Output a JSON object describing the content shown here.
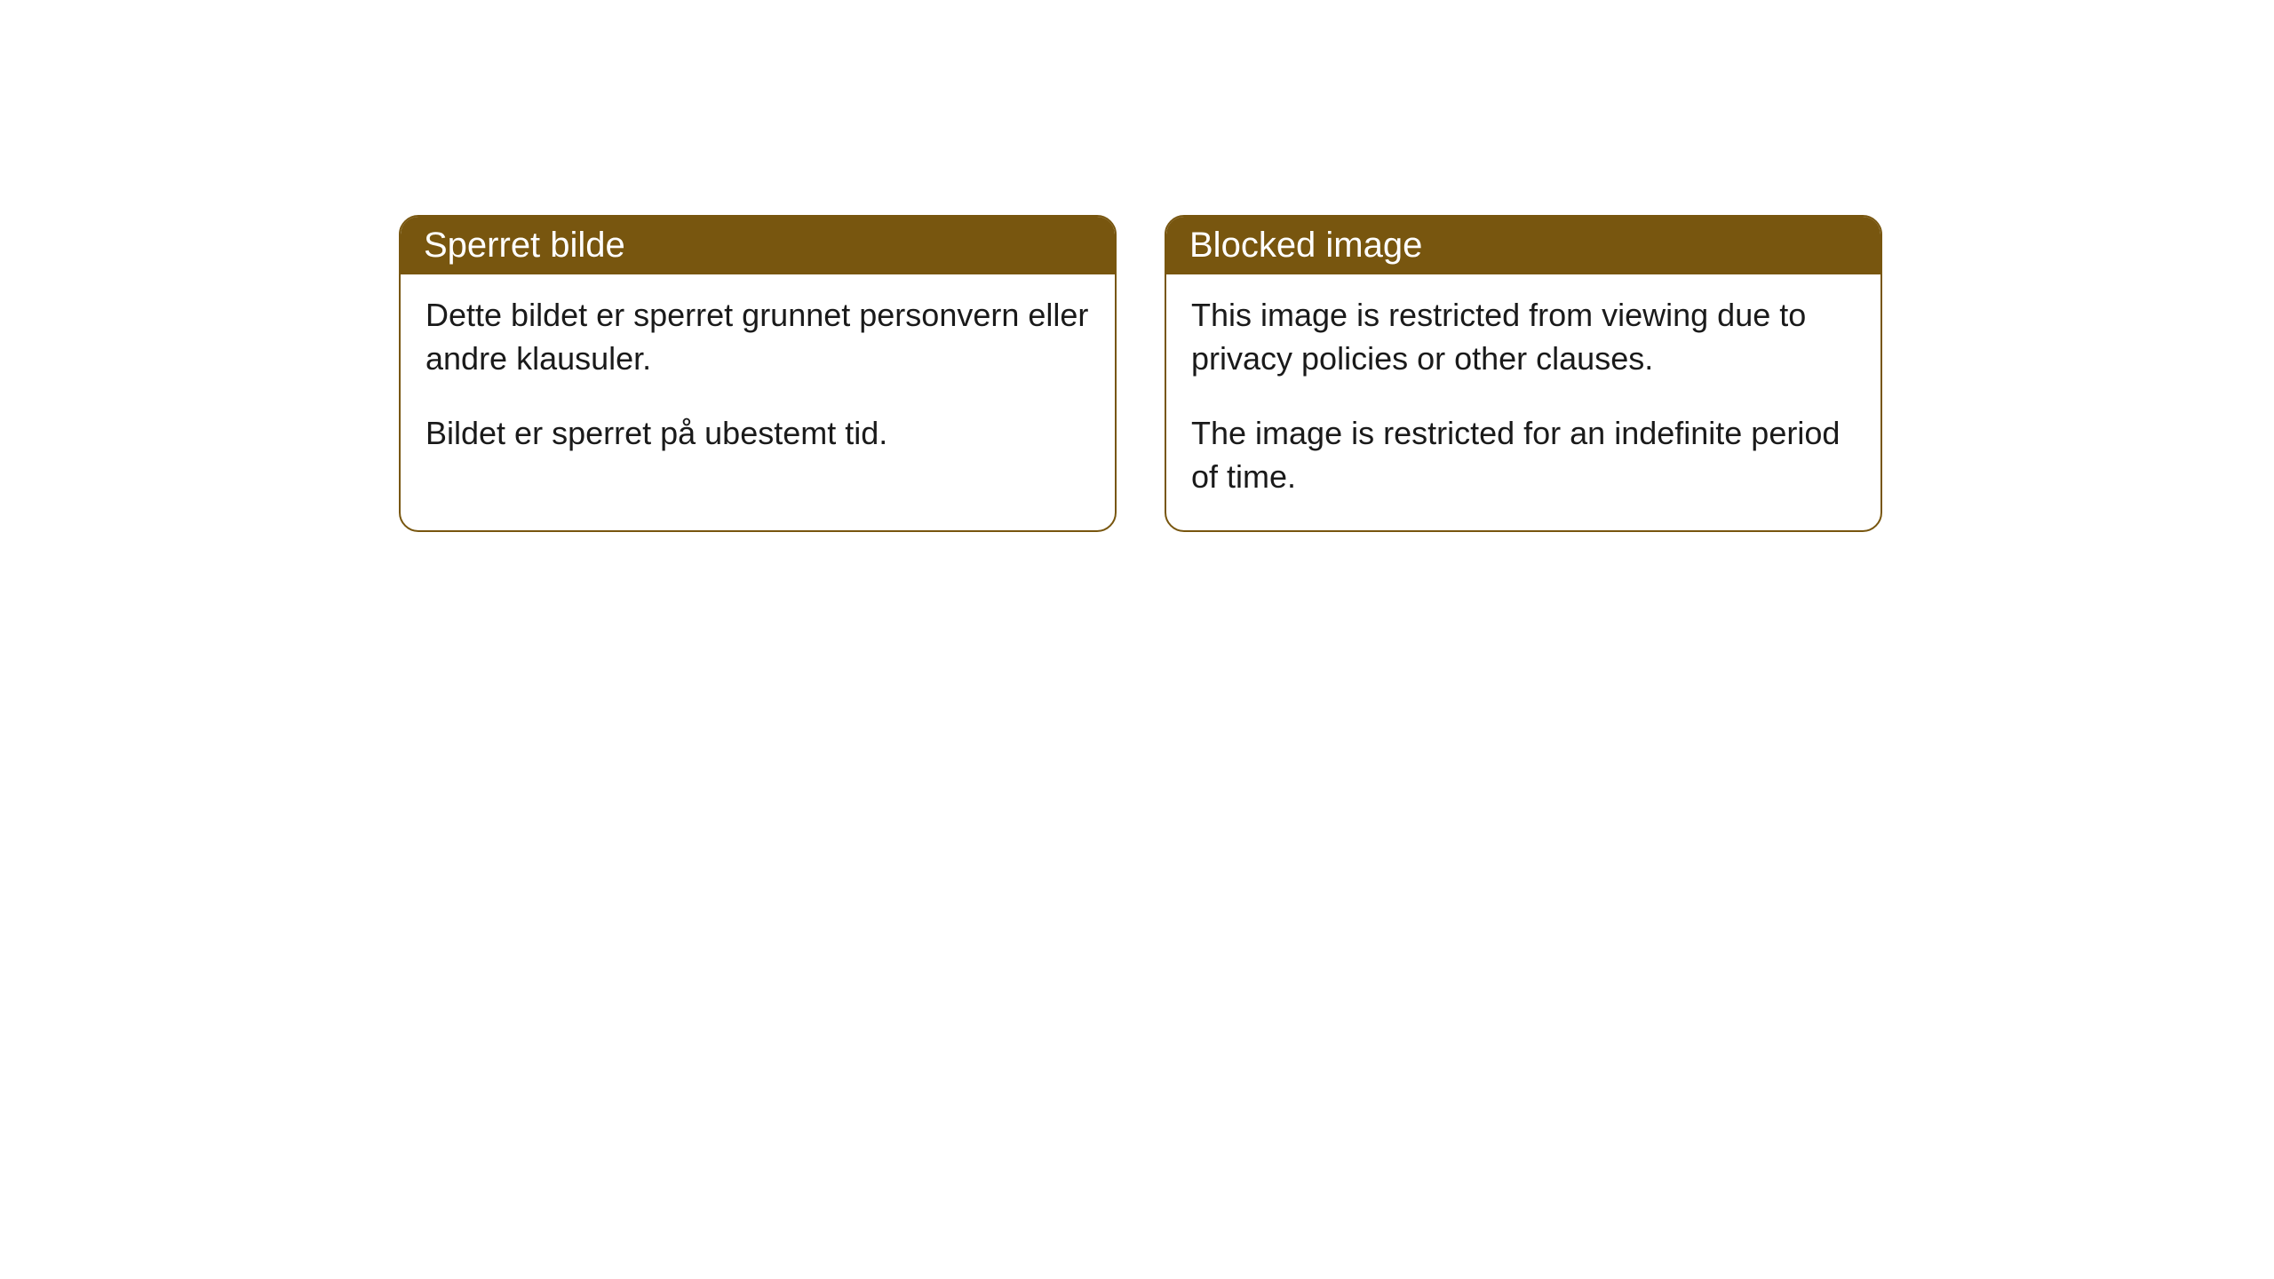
{
  "cards": [
    {
      "title": "Sperret bilde",
      "paragraph1": "Dette bildet er sperret grunnet personvern eller andre klausuler.",
      "paragraph2": "Bildet er sperret på ubestemt tid."
    },
    {
      "title": "Blocked image",
      "paragraph1": "This image is restricted from viewing due to privacy policies or other clauses.",
      "paragraph2": "The image is restricted for an indefinite period of time."
    }
  ],
  "styling": {
    "header_background_color": "#78560f",
    "header_text_color": "#ffffff",
    "card_border_color": "#78560f",
    "card_background_color": "#ffffff",
    "body_text_color": "#1a1a1a",
    "page_background_color": "#ffffff",
    "border_radius": 22,
    "header_fontsize": 40,
    "body_fontsize": 36
  }
}
